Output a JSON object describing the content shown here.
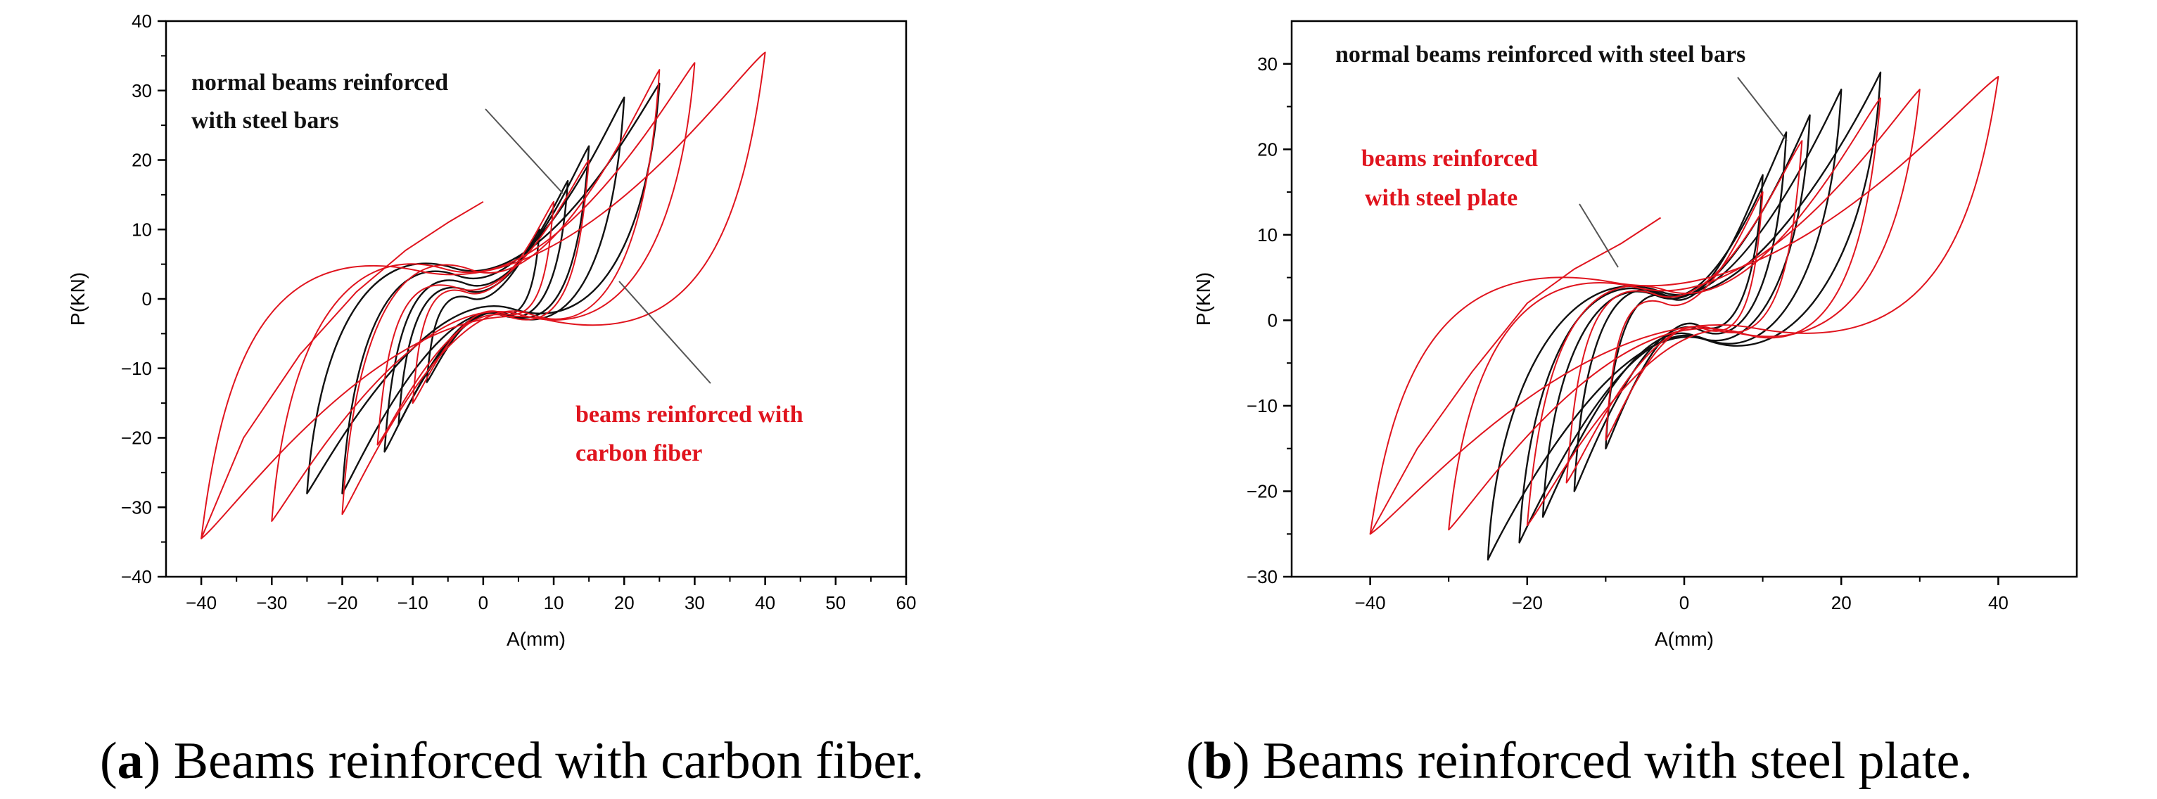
{
  "colors": {
    "black_series": "#111111",
    "red_series": "#e0141e",
    "axis": "#000000"
  },
  "chart_data": [
    {
      "type": "line",
      "panel": "a",
      "xlabel": "A(mm)",
      "ylabel": "P(KN)",
      "xlim": [
        -45,
        60
      ],
      "ylim": [
        -40,
        40
      ],
      "xticks": [
        -40,
        -30,
        -20,
        -10,
        0,
        10,
        20,
        30,
        40,
        50,
        60
      ],
      "yticks": [
        -40,
        -30,
        -20,
        -10,
        0,
        10,
        20,
        30,
        40
      ],
      "caption_letter": "a",
      "caption_text": ") Beams reinforced with carbon fiber.",
      "annotations": [
        {
          "lines": [
            "normal beams reinforced",
            "with steel bars"
          ],
          "color": "#111111"
        },
        {
          "lines": [
            "beams reinforced with",
            " carbon fiber"
          ],
          "color": "#e0141e"
        }
      ],
      "series": [
        {
          "name": "normal beams reinforced with steel bars",
          "color": "#111111",
          "loops": [
            {
              "x_min": -8,
              "y_min": -12,
              "x_max": 8,
              "y_max": 10,
              "w": 3
            },
            {
              "x_min": -12,
              "y_min": -18,
              "x_max": 12,
              "y_max": 17,
              "w": 4
            },
            {
              "x_min": -14,
              "y_min": -22,
              "x_max": 15,
              "y_max": 22,
              "w": 5
            },
            {
              "x_min": -20,
              "y_min": -28,
              "x_max": 20,
              "y_max": 29,
              "w": 6
            },
            {
              "x_min": -25,
              "y_min": -28,
              "x_max": 25,
              "y_max": 31,
              "w": 7
            }
          ]
        },
        {
          "name": "beams reinforced with carbon fiber",
          "color": "#e0141e",
          "loops": [
            {
              "x_min": -10,
              "y_min": -15,
              "x_max": 10,
              "y_max": 14,
              "w": 4
            },
            {
              "x_min": -15,
              "y_min": -21,
              "x_max": 15,
              "y_max": 20,
              "w": 6
            },
            {
              "x_min": -20,
              "y_min": -31,
              "x_max": 25,
              "y_max": 33,
              "w": 7
            },
            {
              "x_min": -30,
              "y_min": -32,
              "x_max": 30,
              "y_max": 34,
              "w": 9
            },
            {
              "x_min": -40,
              "y_min": -34.5,
              "x_max": 40,
              "y_max": 35.5,
              "w": 15
            }
          ],
          "tail": [
            [
              -40,
              -34.5
            ],
            [
              -34,
              -20
            ],
            [
              -26,
              -8
            ],
            [
              -18,
              1
            ],
            [
              -11,
              7
            ],
            [
              -5,
              11
            ],
            [
              0,
              14
            ]
          ]
        }
      ]
    },
    {
      "type": "line",
      "panel": "b",
      "xlabel": "A(mm)",
      "ylabel": "P(KN)",
      "xlim": [
        -50,
        50
      ],
      "ylim": [
        -30,
        35
      ],
      "xticks": [
        -40,
        -20,
        0,
        20,
        40
      ],
      "yticks": [
        -30,
        -20,
        -10,
        0,
        10,
        20,
        30
      ],
      "caption_letter": "b",
      "caption_text": ") Beams reinforced with steel plate.",
      "annotations": [
        {
          "lines": [
            "normal beams reinforced with steel bars"
          ],
          "color": "#111111"
        },
        {
          "lines": [
            "beams reinforced",
            "with steel plate"
          ],
          "color": "#e0141e"
        }
      ],
      "series": [
        {
          "name": "normal beams reinforced with steel bars",
          "color": "#111111",
          "loops": [
            {
              "x_min": -10,
              "y_min": -15,
              "x_max": 10,
              "y_max": 17,
              "w": 3
            },
            {
              "x_min": -14,
              "y_min": -20,
              "x_max": 13,
              "y_max": 22,
              "w": 4
            },
            {
              "x_min": -18,
              "y_min": -23,
              "x_max": 16,
              "y_max": 24,
              "w": 4
            },
            {
              "x_min": -21,
              "y_min": -26,
              "x_max": 20,
              "y_max": 27,
              "w": 5
            },
            {
              "x_min": -25,
              "y_min": -28,
              "x_max": 25,
              "y_max": 29,
              "w": 5
            }
          ]
        },
        {
          "name": "beams reinforced with steel plate",
          "color": "#e0141e",
          "loops": [
            {
              "x_min": -10,
              "y_min": -14,
              "x_max": 10,
              "y_max": 15,
              "w": 4
            },
            {
              "x_min": -15,
              "y_min": -19,
              "x_max": 15,
              "y_max": 21,
              "w": 6
            },
            {
              "x_min": -20,
              "y_min": -24,
              "x_max": 25,
              "y_max": 26,
              "w": 8
            },
            {
              "x_min": -30,
              "y_min": -24.5,
              "x_max": 30,
              "y_max": 27,
              "w": 10
            },
            {
              "x_min": -40,
              "y_min": -25,
              "x_max": 40,
              "y_max": 28.5,
              "w": 15
            }
          ],
          "tail": [
            [
              -40,
              -25
            ],
            [
              -34,
              -15
            ],
            [
              -27,
              -6
            ],
            [
              -20,
              2
            ],
            [
              -14,
              6
            ],
            [
              -8,
              9
            ],
            [
              -3,
              12
            ]
          ]
        }
      ]
    }
  ]
}
